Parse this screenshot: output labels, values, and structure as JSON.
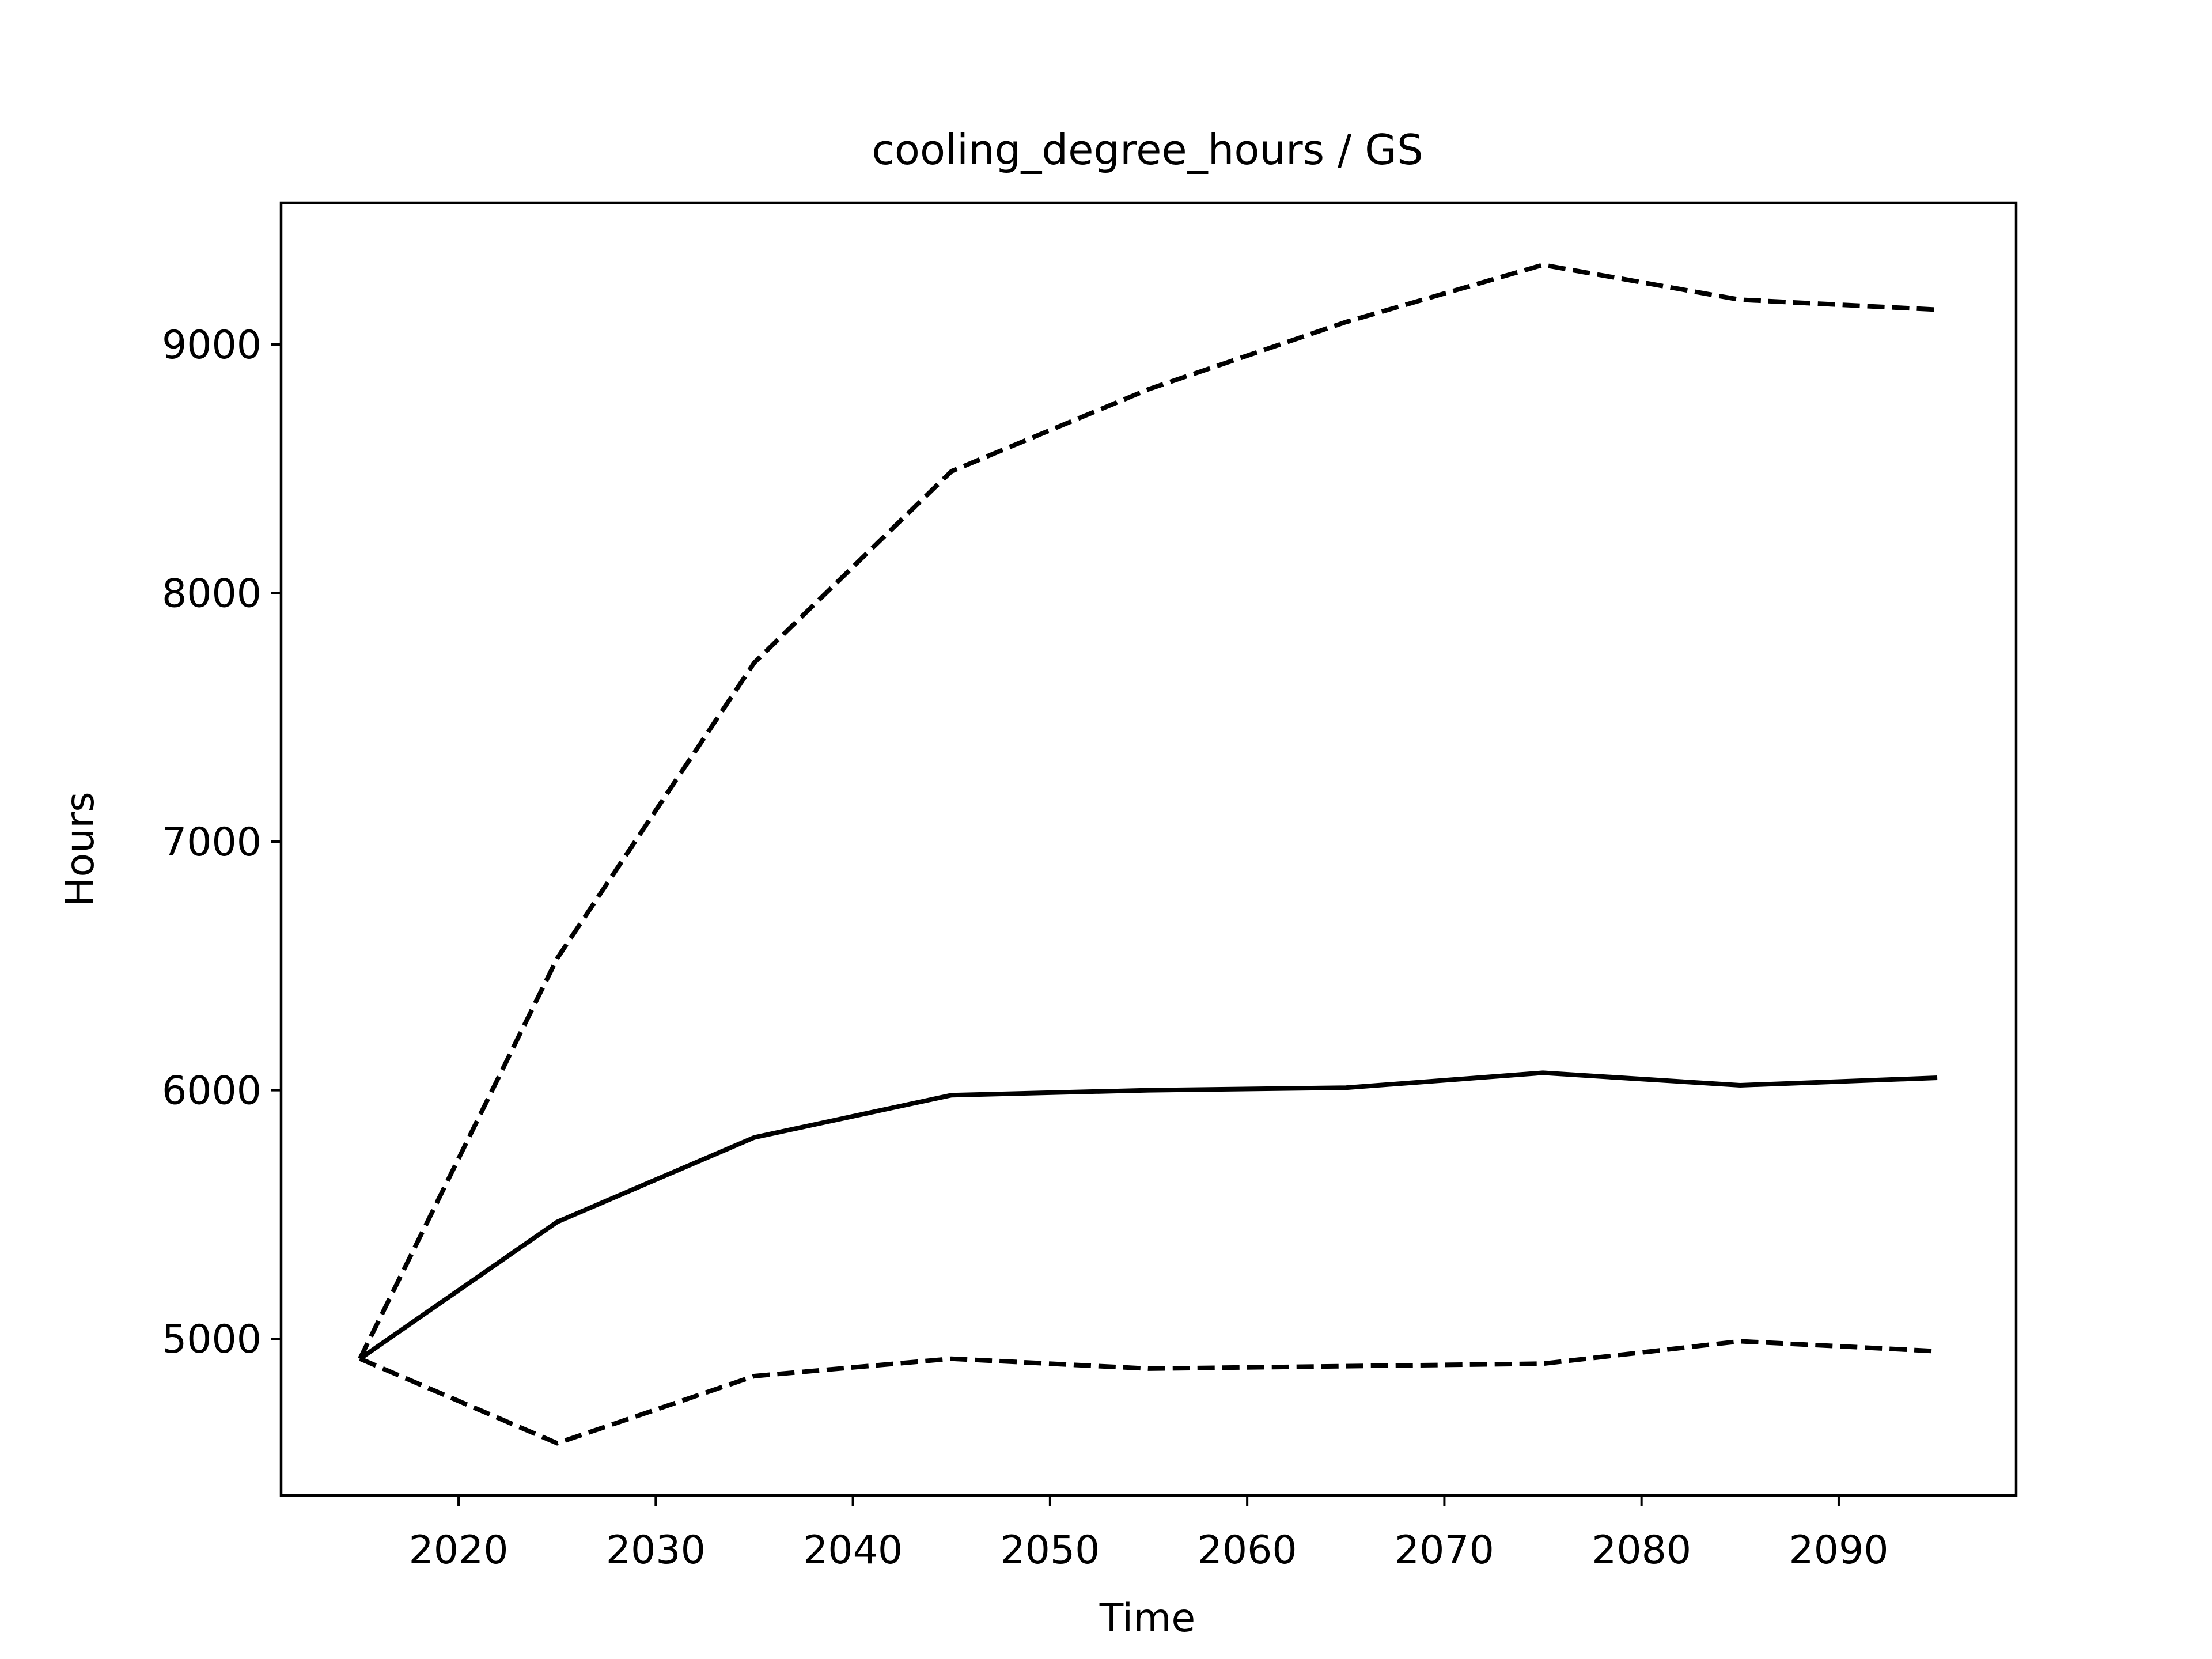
{
  "chart_data": {
    "type": "line",
    "title": "cooling_degree_hours / GS",
    "xlabel": "Time",
    "ylabel": "Hours",
    "xlim": [
      2011,
      2099
    ],
    "ylim": [
      4370,
      9570
    ],
    "x": [
      2015,
      2025,
      2035,
      2045,
      2055,
      2065,
      2075,
      2085,
      2095
    ],
    "xticks": [
      2020,
      2030,
      2040,
      2050,
      2060,
      2070,
      2080,
      2090
    ],
    "yticks": [
      5000,
      6000,
      7000,
      8000,
      9000
    ],
    "series": [
      {
        "style": "dashed",
        "color": "#000000",
        "values": [
          4920,
          6530,
          7720,
          8490,
          8820,
          9090,
          9320,
          9180,
          9140
        ]
      },
      {
        "style": "solid",
        "color": "#000000",
        "values": [
          4920,
          5470,
          5810,
          5980,
          6000,
          6010,
          6070,
          6020,
          6050
        ]
      },
      {
        "style": "dashed",
        "color": "#000000",
        "values": [
          4920,
          4580,
          4850,
          4920,
          4880,
          4890,
          4900,
          4990,
          4950
        ]
      }
    ]
  }
}
